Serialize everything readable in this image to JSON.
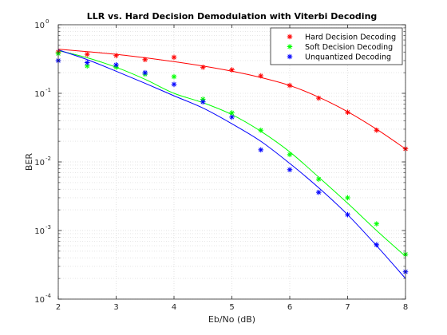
{
  "chart_data": {
    "type": "line",
    "title": "LLR vs. Hard Decision Demodulation with Viterbi Decoding",
    "xlabel": "Eb/No (dB)",
    "ylabel": "BER",
    "xlim": [
      2,
      8
    ],
    "ylim": [
      0.0001,
      1
    ],
    "yscale": "log",
    "grid": "on (major and minor, dotted)",
    "legend_position": "top-right",
    "x_ticks": [
      "2",
      "3",
      "4",
      "5",
      "6",
      "7",
      "8"
    ],
    "y_ticks": [
      {
        "base": "10",
        "exp": "0",
        "value": 1
      },
      {
        "base": "10",
        "exp": "-1",
        "value": 0.1
      },
      {
        "base": "10",
        "exp": "-2",
        "value": 0.01
      },
      {
        "base": "10",
        "exp": "-3",
        "value": 0.001
      },
      {
        "base": "10",
        "exp": "-4",
        "value": 0.0001
      }
    ],
    "x": [
      2,
      2.5,
      3,
      3.5,
      4,
      4.5,
      5,
      5.5,
      6,
      6.5,
      7,
      7.5,
      8
    ],
    "series": [
      {
        "name": "Hard Decision Decoding",
        "color": "#ff0000",
        "points": [
          0.4,
          0.37,
          0.355,
          0.31,
          0.335,
          0.24,
          0.22,
          0.18,
          0.13,
          0.085,
          0.053,
          0.029,
          0.0155
        ],
        "fit": [
          0.44,
          0.405,
          0.37,
          0.33,
          0.29,
          0.25,
          0.21,
          0.17,
          0.13,
          0.088,
          0.054,
          0.03,
          0.0155
        ]
      },
      {
        "name": "Soft Decision Decoding",
        "color": "#00ff00",
        "points": [
          0.38,
          0.25,
          0.24,
          0.19,
          0.175,
          0.082,
          0.052,
          0.029,
          0.0128,
          0.0056,
          0.003,
          0.00125,
          0.00045
        ],
        "fit": [
          0.42,
          0.33,
          0.24,
          0.16,
          0.1,
          0.073,
          0.049,
          0.028,
          0.014,
          0.006,
          0.0025,
          0.001,
          0.00042
        ]
      },
      {
        "name": "Unquantized Decoding",
        "color": "#0000ff",
        "points": [
          0.3,
          0.28,
          0.26,
          0.2,
          0.135,
          0.075,
          0.045,
          0.015,
          0.0077,
          0.0036,
          0.0017,
          0.00062,
          0.00025
        ],
        "fit": [
          0.43,
          0.31,
          0.21,
          0.14,
          0.092,
          0.061,
          0.036,
          0.02,
          0.0095,
          0.0042,
          0.0017,
          0.0006,
          0.0002
        ]
      }
    ]
  }
}
